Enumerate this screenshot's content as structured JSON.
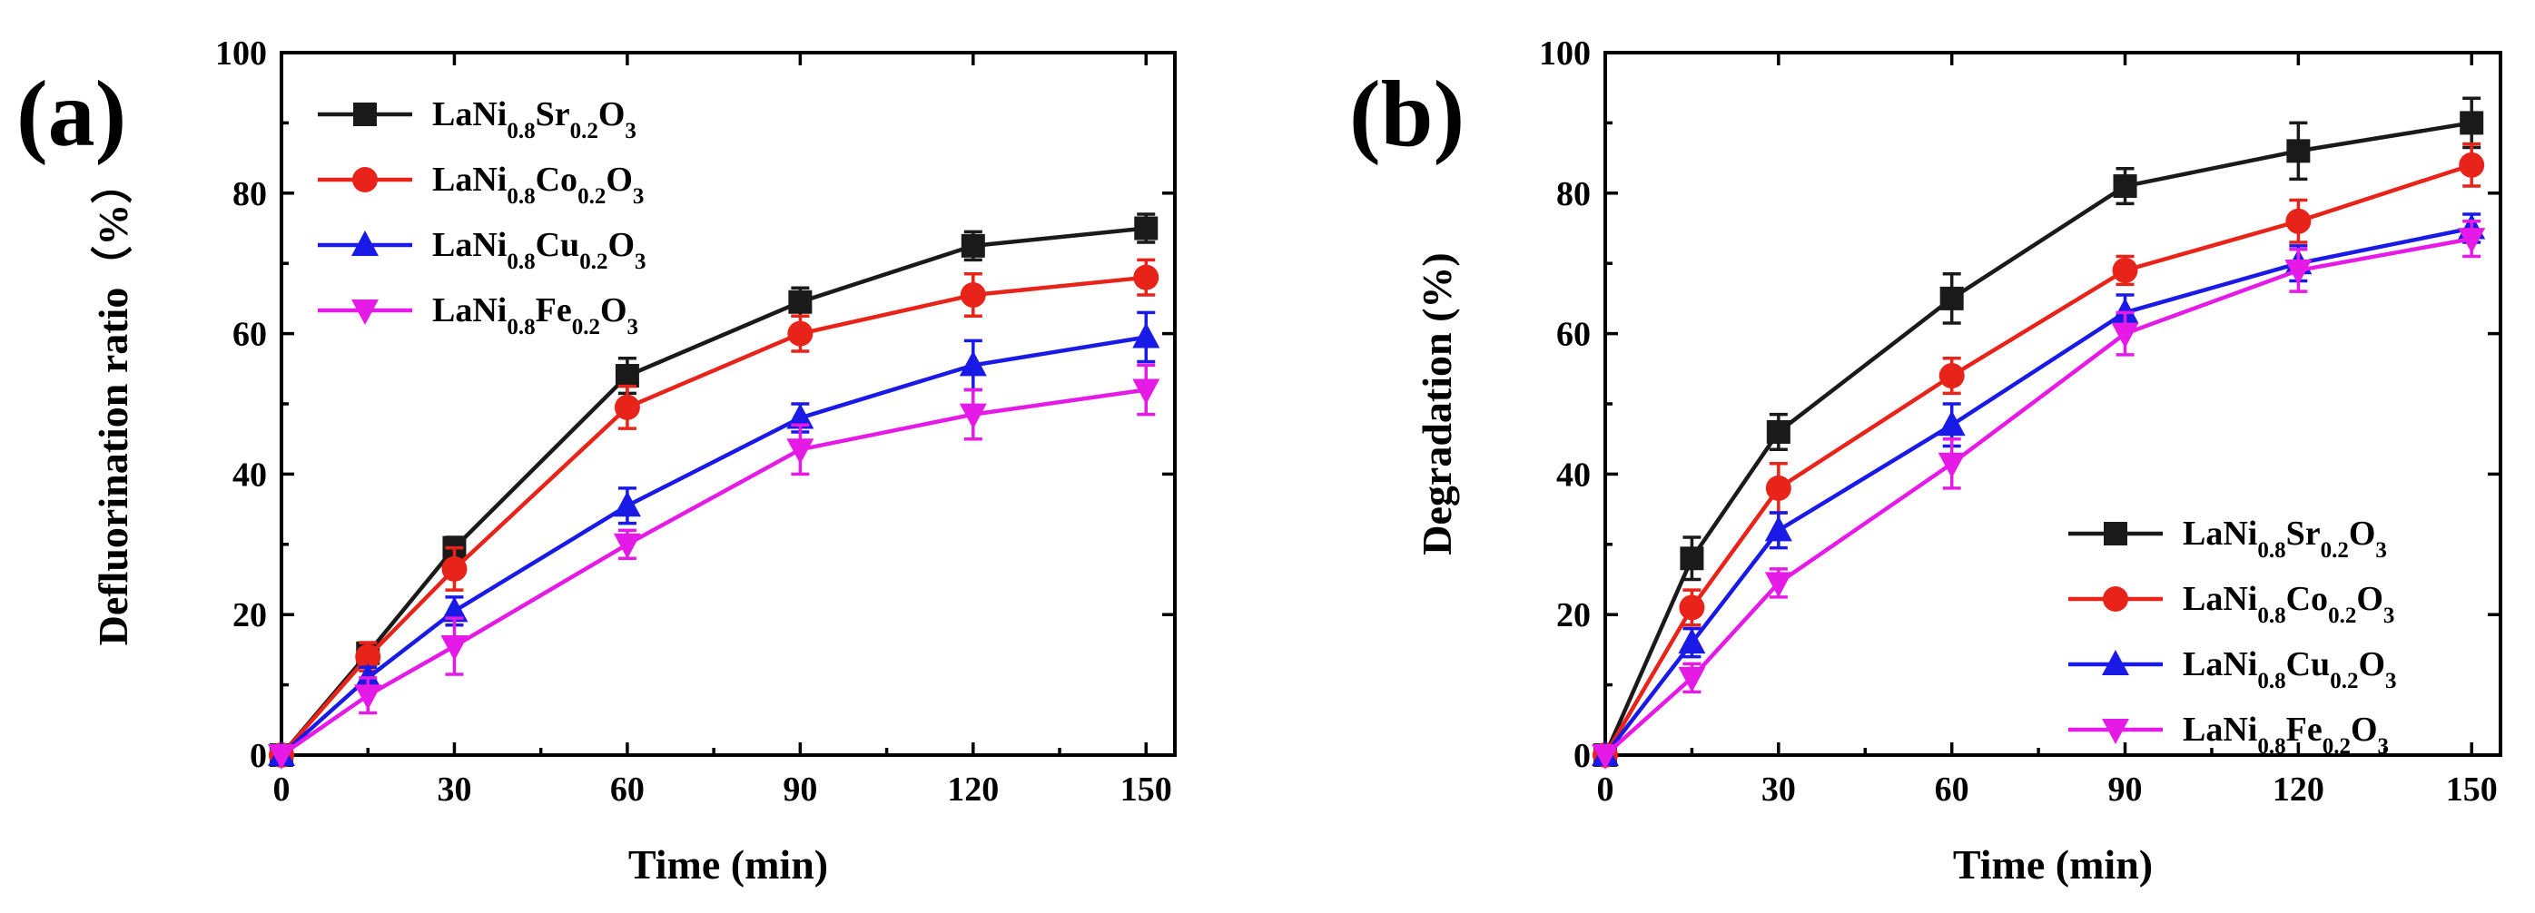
{
  "figure": {
    "panels": [
      "(a)",
      "(b)"
    ]
  },
  "chart_data": [
    {
      "type": "line",
      "panel_label": "(a)",
      "title": "",
      "xlabel": "Time (min)",
      "ylabel": "Defluorination ratio（%）",
      "x": [
        0,
        15,
        30,
        60,
        90,
        120,
        150
      ],
      "xlim": [
        0,
        155
      ],
      "ylim": [
        0,
        100
      ],
      "xticks": [
        0,
        30,
        60,
        90,
        120,
        150
      ],
      "yticks": [
        0,
        20,
        40,
        60,
        80,
        100
      ],
      "grid": false,
      "legend_position": "top-left",
      "series": [
        {
          "name": "LaNi0.8Sr0.2O3",
          "label_parts": [
            "LaNi",
            "0.8",
            "Sr",
            "0.2",
            "O",
            "3"
          ],
          "color": "#1a1a1a",
          "marker": "square",
          "values": [
            0,
            14.5,
            29.5,
            54,
            64.5,
            72.5,
            75
          ],
          "errors": [
            0,
            1.5,
            1.5,
            2.5,
            2,
            2,
            2
          ]
        },
        {
          "name": "LaNi0.8Co0.2O3",
          "label_parts": [
            "LaNi",
            "0.8",
            "Co",
            "0.2",
            "O",
            "3"
          ],
          "color": "#e8231a",
          "marker": "circle",
          "values": [
            0,
            14,
            26.5,
            49.5,
            60,
            65.5,
            68
          ],
          "errors": [
            0,
            2,
            3,
            3,
            2.5,
            3,
            2.5
          ]
        },
        {
          "name": "LaNi0.8Cu0.2O3",
          "label_parts": [
            "LaNi",
            "0.8",
            "Cu",
            "0.2",
            "O",
            "3"
          ],
          "color": "#1a1ae6",
          "marker": "triangle-up",
          "values": [
            0,
            11,
            20.5,
            35.5,
            48,
            55.5,
            59.5
          ],
          "errors": [
            0,
            1.5,
            2,
            2.5,
            2,
            3.5,
            3.5
          ]
        },
        {
          "name": "LaNi0.8Fe0.2O3",
          "label_parts": [
            "LaNi",
            "0.8",
            "Fe",
            "0.2",
            "O",
            "3"
          ],
          "color": "#e61ae6",
          "marker": "triangle-down",
          "values": [
            0,
            8.5,
            15.5,
            30,
            43.5,
            48.5,
            52
          ],
          "errors": [
            0,
            2.5,
            4,
            2,
            3.5,
            3.5,
            3.5
          ]
        }
      ]
    },
    {
      "type": "line",
      "panel_label": "(b)",
      "title": "",
      "xlabel": "Time (min)",
      "ylabel": "Degradation (%)",
      "x": [
        0,
        15,
        30,
        60,
        90,
        120,
        150
      ],
      "xlim": [
        0,
        155
      ],
      "ylim": [
        0,
        100
      ],
      "xticks": [
        0,
        30,
        60,
        90,
        120,
        150
      ],
      "yticks": [
        0,
        20,
        40,
        60,
        80,
        100
      ],
      "grid": false,
      "legend_position": "bottom-right",
      "series": [
        {
          "name": "LaNi0.8Sr0.2O3",
          "label_parts": [
            "LaNi",
            "0.8",
            "Sr",
            "0.2",
            "O",
            "3"
          ],
          "color": "#1a1a1a",
          "marker": "square",
          "values": [
            0,
            28,
            46,
            65,
            81,
            86,
            90
          ],
          "errors": [
            0,
            3,
            2.5,
            3.5,
            2.5,
            4,
            3.5
          ]
        },
        {
          "name": "LaNi0.8Co0.2O3",
          "label_parts": [
            "LaNi",
            "0.8",
            "Co",
            "0.2",
            "O",
            "3"
          ],
          "color": "#e8231a",
          "marker": "circle",
          "values": [
            0,
            21,
            38,
            54,
            69,
            76,
            84
          ],
          "errors": [
            0,
            2.5,
            3.5,
            2.5,
            2,
            3,
            3
          ]
        },
        {
          "name": "LaNi0.8Cu0.2O3",
          "label_parts": [
            "LaNi",
            "0.8",
            "Cu",
            "0.2",
            "O",
            "3"
          ],
          "color": "#1a1ae6",
          "marker": "triangle-up",
          "values": [
            0,
            16,
            32,
            47,
            63,
            70,
            75
          ],
          "errors": [
            0,
            2,
            2.5,
            3,
            2.5,
            2.5,
            2
          ]
        },
        {
          "name": "LaNi0.8Fe0.2O3",
          "label_parts": [
            "LaNi",
            "0.8",
            "Fe",
            "0.2",
            "O",
            "3"
          ],
          "color": "#e61ae6",
          "marker": "triangle-down",
          "values": [
            0,
            11,
            24.5,
            41.5,
            60,
            69,
            73.5
          ],
          "errors": [
            0,
            2,
            2,
            3.5,
            3,
            3,
            2.5
          ]
        }
      ]
    }
  ]
}
